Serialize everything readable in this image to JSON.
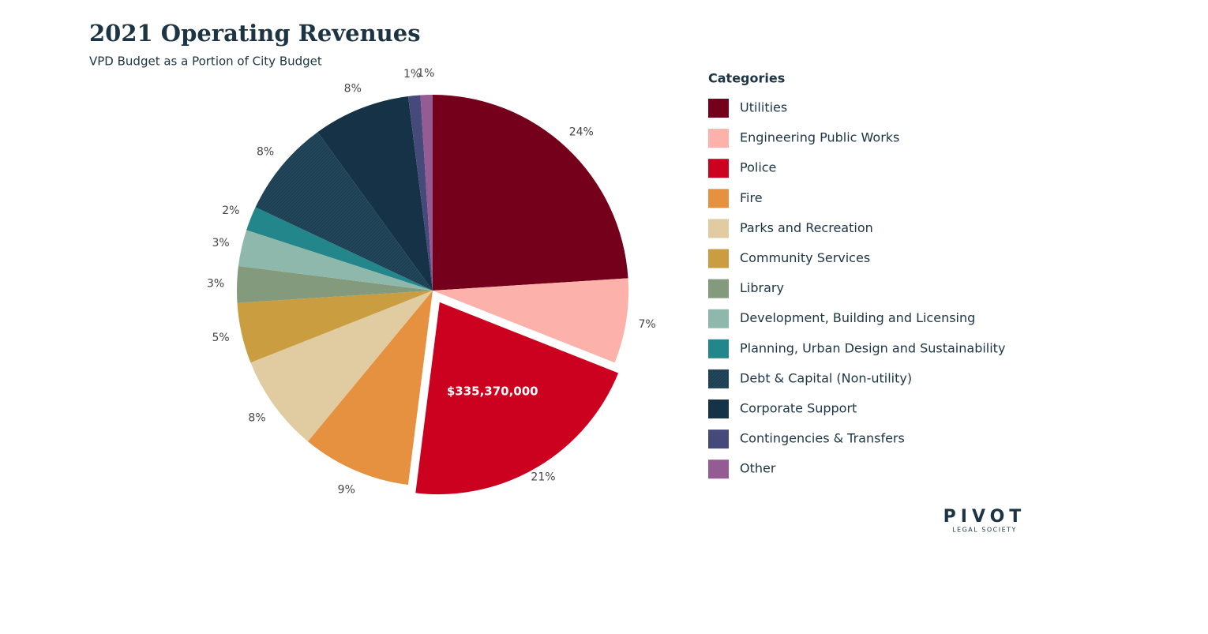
{
  "chart_data": {
    "type": "pie",
    "title": "2021 Operating Revenues",
    "subtitle": "VPD Budget as a Portion of City Budget",
    "legend_title": "Categories",
    "legend": "right",
    "categories": [
      "Utilities",
      "Engineering Public Works",
      "Police",
      "Fire",
      "Parks and Recreation",
      "Community Services",
      "Library",
      "Development, Building and Licensing",
      "Planning, Urban Design and Sustainability",
      "Debt & Capital (Non-utility)",
      "Corporate Support",
      "Contingencies & Transfers",
      "Other"
    ],
    "values": [
      24,
      7,
      21,
      9,
      8,
      5,
      3,
      3,
      2,
      8,
      8,
      1,
      1
    ],
    "value_labels": [
      "24%",
      "7%",
      "21%",
      "9%",
      "8%",
      "5%",
      "3%",
      "3%",
      "2%",
      "8%",
      "8%",
      "1%",
      "1%"
    ],
    "colors": [
      "#75001c",
      "#fdb1ab",
      "#cc001f",
      "#e5913f",
      "#e0cca0",
      "#c99d40",
      "#849a7c",
      "#8eb8ac",
      "#22868a",
      "#23485c",
      "#163247",
      "#464a7a",
      "#945c93"
    ],
    "highlight": "Police",
    "highlight_label": "$335,370,000",
    "logo": {
      "name": "PIVOT",
      "tagline": "LEGAL SOCIETY"
    }
  }
}
